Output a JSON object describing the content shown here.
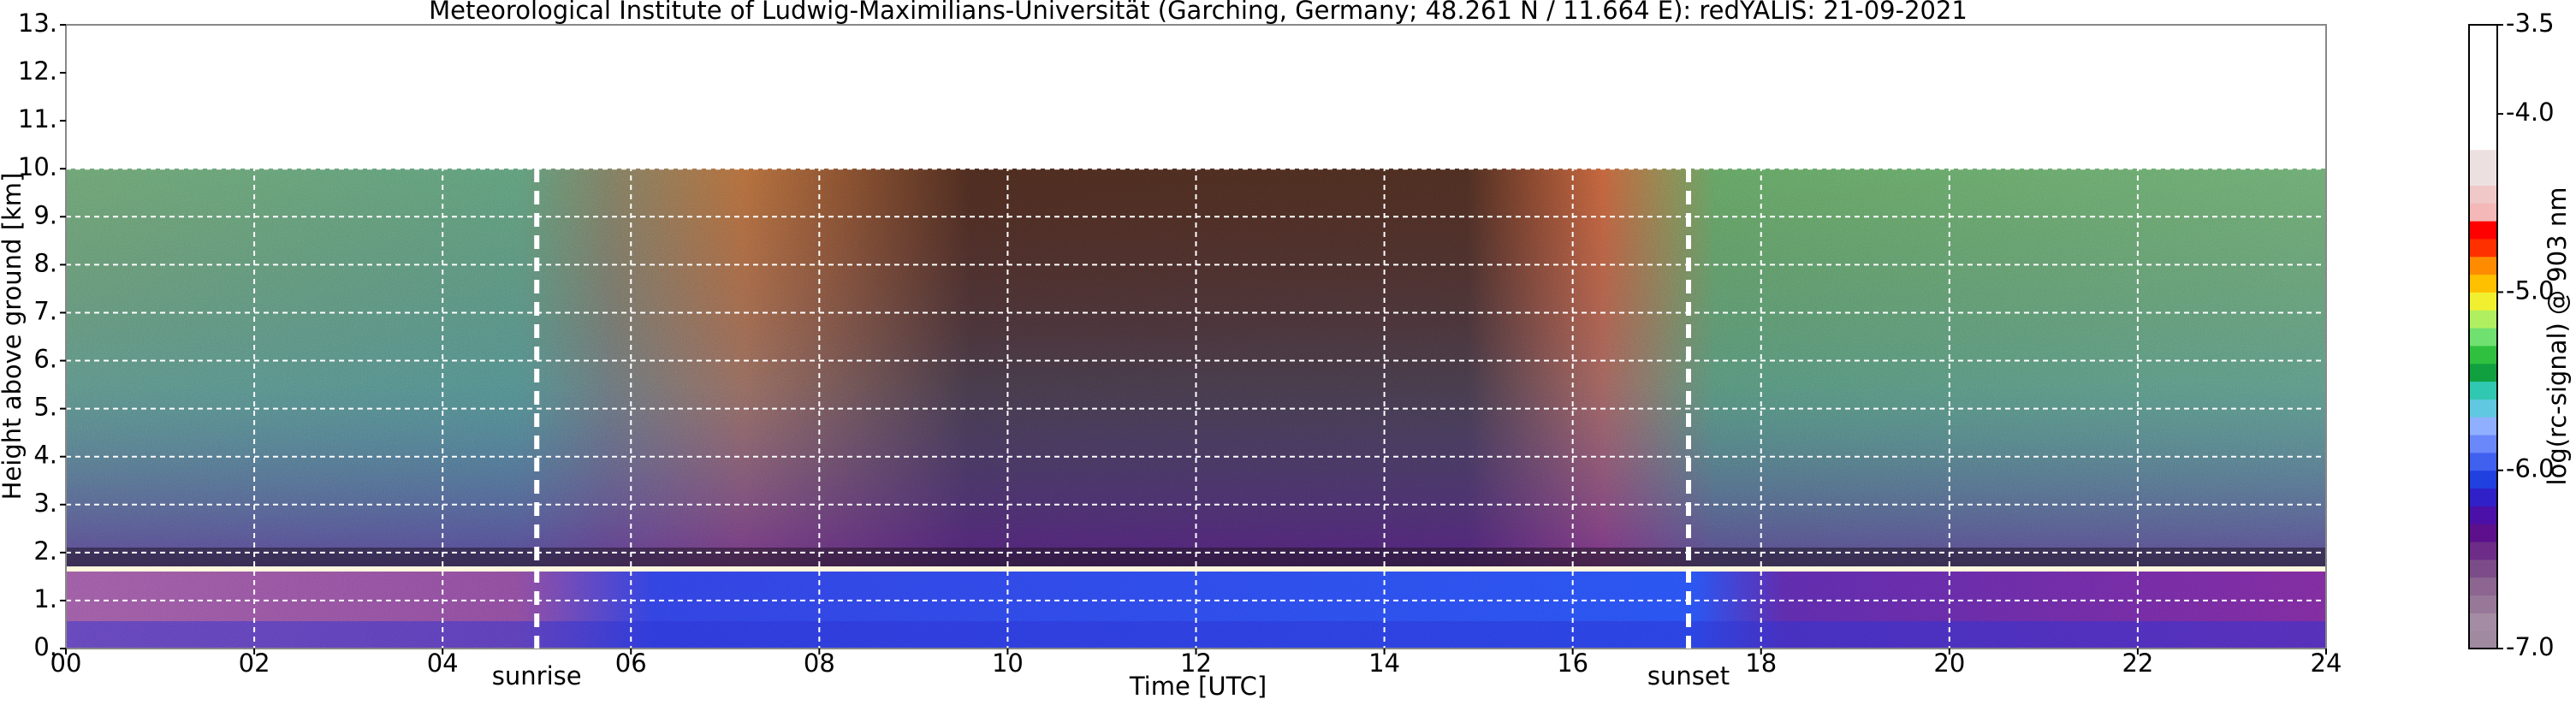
{
  "chart_data": {
    "type": "heatmap",
    "title": "Meteorological Institute of Ludwig-Maximilians-Universität (Garching, Germany; 48.261 N / 11.664 E):    redYALIS: 21-09-2021",
    "xlabel": "Time [UTC]",
    "ylabel": "Height above ground [km]",
    "colorbar_label": "log(rc-signal) @ 903 nm",
    "xlim": [
      0,
      24
    ],
    "xticks": [
      {
        "value": 0,
        "label": "00"
      },
      {
        "value": 2,
        "label": "02"
      },
      {
        "value": 4,
        "label": "04"
      },
      {
        "value": 6,
        "label": "06"
      },
      {
        "value": 8,
        "label": "08"
      },
      10,
      12,
      14,
      16,
      18,
      20,
      22,
      24
    ],
    "ylim": [
      0,
      13
    ],
    "yticks": [
      {
        "value": 0,
        "label": "0."
      },
      {
        "value": 1,
        "label": "1."
      },
      {
        "value": 2,
        "label": "2."
      },
      {
        "value": 3,
        "label": "3."
      },
      {
        "value": 4,
        "label": "4."
      },
      {
        "value": 5,
        "label": "5."
      },
      {
        "value": 6,
        "label": "6."
      },
      {
        "value": 7,
        "label": "7."
      },
      {
        "value": 8,
        "label": "8."
      },
      {
        "value": 9,
        "label": "9."
      },
      {
        "value": 10,
        "label": "10."
      },
      {
        "value": 11,
        "label": "11."
      },
      {
        "value": 12,
        "label": "12."
      },
      {
        "value": 13,
        "label": "13."
      }
    ],
    "clim": [
      -7,
      -3.5
    ],
    "cticks": [
      {
        "value": -3.5,
        "label": "-3.5"
      },
      {
        "value": -4,
        "label": "-4.0"
      },
      {
        "value": -5,
        "label": "-5.0"
      },
      {
        "value": -6,
        "label": "-6.0"
      },
      {
        "value": -7,
        "label": "-7.0"
      }
    ],
    "colormap": [
      "#a08aa0",
      "#a48ca4",
      "#987898",
      "#8c6690",
      "#7c4c88",
      "#6c2c88",
      "#5c108c",
      "#4a10a8",
      "#3020c8",
      "#2040e0",
      "#4060f0",
      "#6a88fa",
      "#90b0ff",
      "#60c8e0",
      "#30c8b0",
      "#10a040",
      "#30c040",
      "#70e070",
      "#b0f060",
      "#f0f030",
      "#ffc000",
      "#ff8c00",
      "#ff3000",
      "#ff0000",
      "#f4b8b8",
      "#f0c8c8",
      "#ede0e0",
      "#ede0e0",
      "#ffffff",
      "#ffffff",
      "#ffffff",
      "#ffffff",
      "#ffffff",
      "#ffffff",
      "#ffffff"
    ],
    "grid": true,
    "annotations": [
      {
        "text": "sunrise",
        "x": 5.0
      },
      {
        "text": "sunset",
        "x": 17.23
      }
    ]
  }
}
